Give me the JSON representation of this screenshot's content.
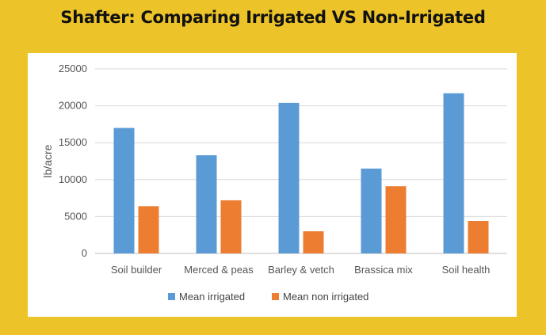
{
  "title": "Shafter: Comparing Irrigated VS Non-Irrigated",
  "chart_data": {
    "type": "bar",
    "title": "",
    "xlabel": "",
    "ylabel": "lb/acre",
    "ylim": [
      0,
      25000
    ],
    "yticks": [
      0,
      5000,
      10000,
      15000,
      20000,
      25000
    ],
    "grid": true,
    "legend_position": "bottom",
    "categories": [
      "Soil builder",
      "Merced & peas",
      "Barley & vetch",
      "Brassica mix",
      "Soil health"
    ],
    "series": [
      {
        "name": "Mean irrigated",
        "color": "#5b9bd5",
        "values": [
          17000,
          13300,
          20400,
          11500,
          21700
        ]
      },
      {
        "name": "Mean non irrigated",
        "color": "#ed7d31",
        "values": [
          6400,
          7200,
          3000,
          9100,
          4400
        ]
      }
    ]
  }
}
